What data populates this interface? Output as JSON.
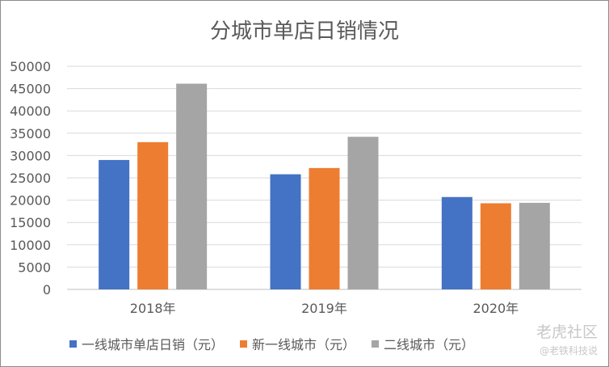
{
  "chart_data": {
    "type": "bar",
    "title": "分城市单店日销情况",
    "categories": [
      "2018年",
      "2019年",
      "2020年"
    ],
    "series": [
      {
        "name": "一线城市单店日销（元）",
        "color": "#4472C4",
        "values": [
          29000,
          25800,
          20700
        ]
      },
      {
        "name": "新一线城市（元）",
        "color": "#ED7D31",
        "values": [
          33000,
          27200,
          19300
        ]
      },
      {
        "name": "二线城市（元）",
        "color": "#A5A5A5",
        "values": [
          46100,
          34200,
          19400
        ]
      }
    ],
    "yticks": [
      "0",
      "5000",
      "10000",
      "15000",
      "20000",
      "25000",
      "30000",
      "35000",
      "40000",
      "45000",
      "50000"
    ],
    "ylim": [
      0,
      50000
    ],
    "grid": true,
    "legend_position": "bottom"
  },
  "watermark": {
    "main": "老虎社区",
    "sub": "@老铁科技说"
  }
}
